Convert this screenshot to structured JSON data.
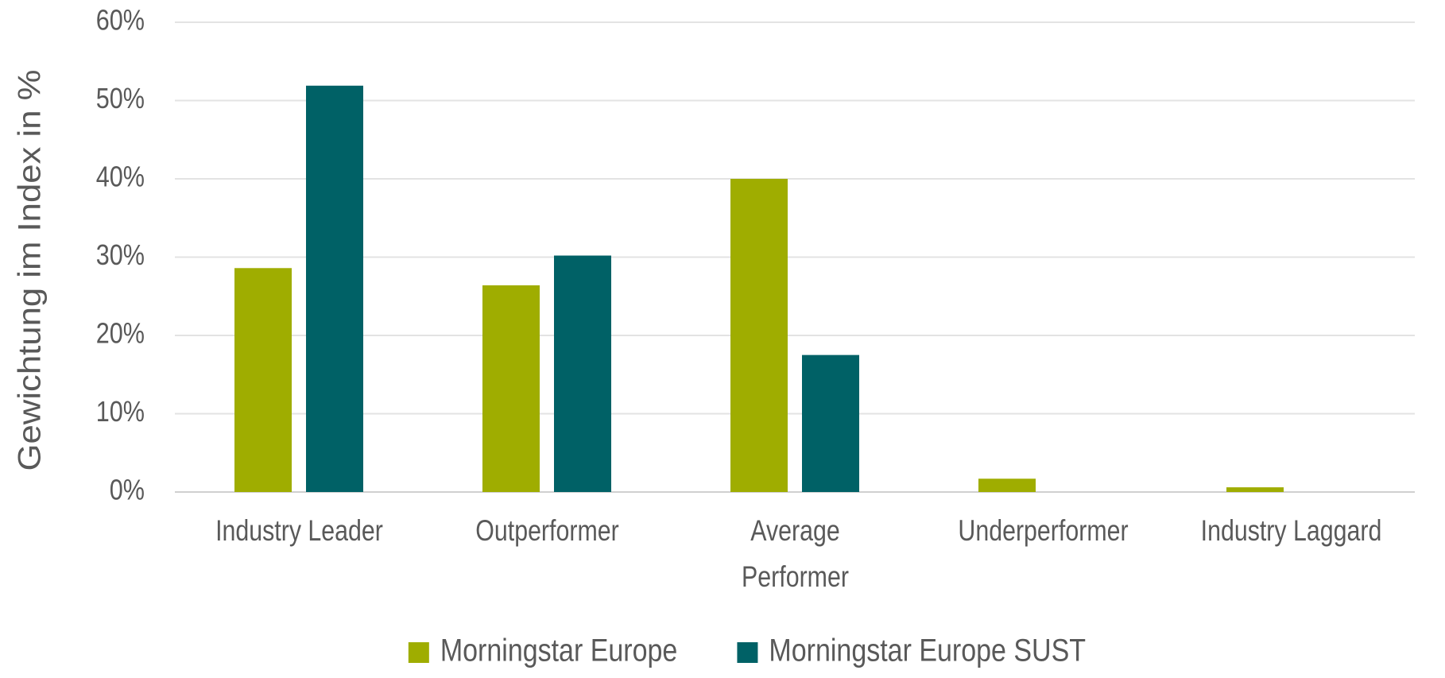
{
  "chart_data": {
    "type": "bar",
    "categories": [
      "Industry Leader",
      "Outperformer",
      "Average Performer",
      "Underperformer",
      "Industry Laggard"
    ],
    "series": [
      {
        "name": "Morningstar Europe",
        "color": "#9fad00",
        "values": [
          28.6,
          26.4,
          40.0,
          1.7,
          0.6
        ]
      },
      {
        "name": "Morningstar Europe SUST",
        "color": "#006166",
        "values": [
          51.9,
          30.2,
          17.5,
          0,
          0
        ]
      }
    ],
    "y_label": "Gewichtung im Index in %",
    "ylim": [
      0,
      60
    ],
    "yticks": [
      {
        "value": 0,
        "label": "0%"
      },
      {
        "value": 10,
        "label": "10%"
      },
      {
        "value": 20,
        "label": "20%"
      },
      {
        "value": 30,
        "label": "30%"
      },
      {
        "value": 40,
        "label": "40%"
      },
      {
        "value": 50,
        "label": "50%"
      },
      {
        "value": 60,
        "label": "60%"
      }
    ],
    "grid": true,
    "legend": "bottom"
  }
}
